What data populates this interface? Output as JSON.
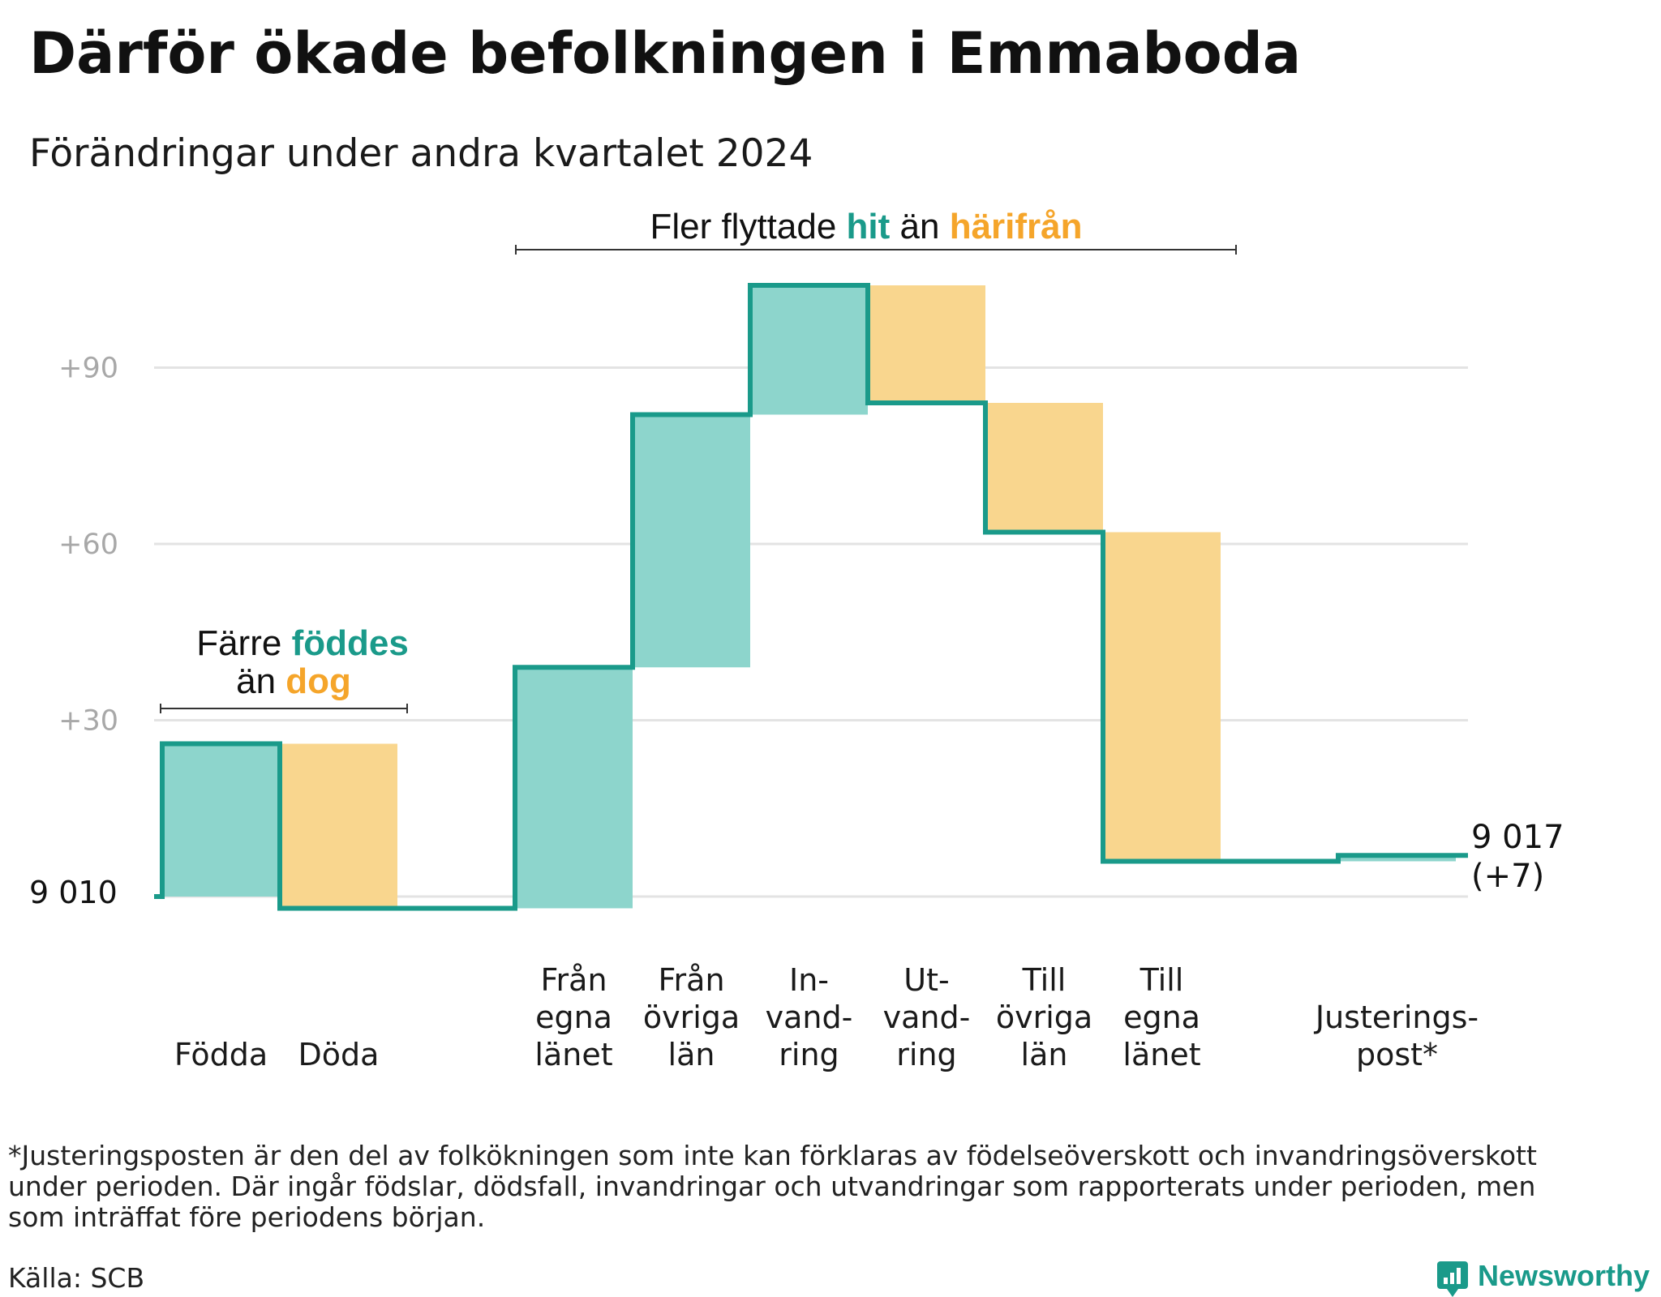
{
  "title": "Därför ökade befolkningen i Emmaboda",
  "subtitle": "Förändringar under andra kvartalet 2024",
  "chart_data": {
    "type": "waterfall",
    "start_value": 9010,
    "start_label": "9 010",
    "end_value": 9017,
    "end_label_lines": [
      "9 017",
      "(+7)"
    ],
    "y_ticks": [
      {
        "value": 30,
        "label": "+30"
      },
      {
        "value": 60,
        "label": "+60"
      },
      {
        "value": 90,
        "label": "+90"
      }
    ],
    "ylim": [
      -5,
      110
    ],
    "steps": [
      {
        "label_lines": [
          "Födda"
        ],
        "change": 26,
        "kind": "in"
      },
      {
        "label_lines": [
          "Döda"
        ],
        "change": -28,
        "kind": "out"
      },
      {
        "label_lines": [
          ""
        ],
        "change": 0,
        "kind": "gap"
      },
      {
        "label_lines": [
          "Från",
          "egna",
          "länet"
        ],
        "change": 41,
        "kind": "in"
      },
      {
        "label_lines": [
          "Från",
          "övriga",
          "län"
        ],
        "change": 43,
        "kind": "in"
      },
      {
        "label_lines": [
          "In-",
          "vand-",
          "ring"
        ],
        "change": 22,
        "kind": "in"
      },
      {
        "label_lines": [
          "Ut-",
          "vand-",
          "ring"
        ],
        "change": -20,
        "kind": "out"
      },
      {
        "label_lines": [
          "Till",
          "övriga",
          "län"
        ],
        "change": -22,
        "kind": "out"
      },
      {
        "label_lines": [
          "Till",
          "egna",
          "länet"
        ],
        "change": -56,
        "kind": "out"
      },
      {
        "label_lines": [
          ""
        ],
        "change": 0,
        "kind": "gap"
      },
      {
        "label_lines": [
          "Justerings-",
          "post*"
        ],
        "change": 1,
        "kind": "in"
      }
    ],
    "annotations": [
      {
        "id": "births",
        "line1_plain": "Färre ",
        "line1_in": "föddes",
        "line2_plain": "än ",
        "line2_out": "dog"
      },
      {
        "id": "migration",
        "plain1": "Fler flyttade ",
        "in_word": "hit",
        "plain2": " än ",
        "out_word": "härifrån"
      }
    ],
    "colors": {
      "line": "#1a9a8a",
      "in_fill": "#8dd5cc",
      "out_fill": "#f9d68e",
      "in_text": "#1a9a8a",
      "out_text": "#f5a52a",
      "grid": "#e3e3e3"
    }
  },
  "footnote": [
    "*Justeringsposten är den del av folkökningen som inte kan förklaras av födelseöverskott och invandringsöverskott",
    "under perioden. Där ingår födslar, dödsfall, invandringar och utvandringar som rapporterats under perioden, men",
    "som inträffat före periodens början."
  ],
  "source": "Källa: SCB",
  "brand": "Newsworthy"
}
